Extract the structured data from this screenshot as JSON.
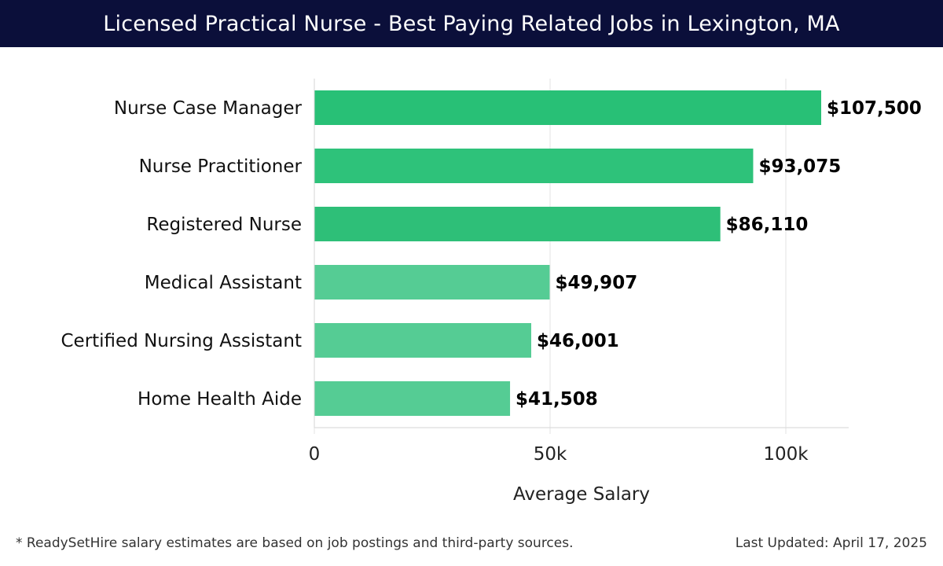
{
  "header": {
    "title": "Licensed Practical Nurse - Best Paying Related Jobs in Lexington, MA"
  },
  "chart_data": {
    "type": "bar",
    "orientation": "horizontal",
    "categories": [
      "Nurse Case Manager",
      "Nurse Practitioner",
      "Registered Nurse",
      "Medical Assistant",
      "Certified Nursing Assistant",
      "Home Health Aide"
    ],
    "values": [
      107500,
      93075,
      86110,
      49907,
      46001,
      41508
    ],
    "value_labels": [
      "$107,500",
      "$93,075",
      "$86,110",
      "$49,907",
      "$46,001",
      "$41,508"
    ],
    "bar_colors": [
      "#28c076",
      "#2ec27a",
      "#2ebf78",
      "#55cc94",
      "#55cc94",
      "#55cc94"
    ],
    "xlabel": "Average Salary",
    "xlim": [
      0,
      113333
    ],
    "xticks": [
      0,
      50000,
      100000
    ],
    "xtick_labels": [
      "0",
      "50k",
      "100k"
    ],
    "grid": true
  },
  "footer": {
    "note": "* ReadySetHire salary estimates are based on job postings and third-party sources.",
    "updated": "Last Updated: April 17, 2025"
  }
}
